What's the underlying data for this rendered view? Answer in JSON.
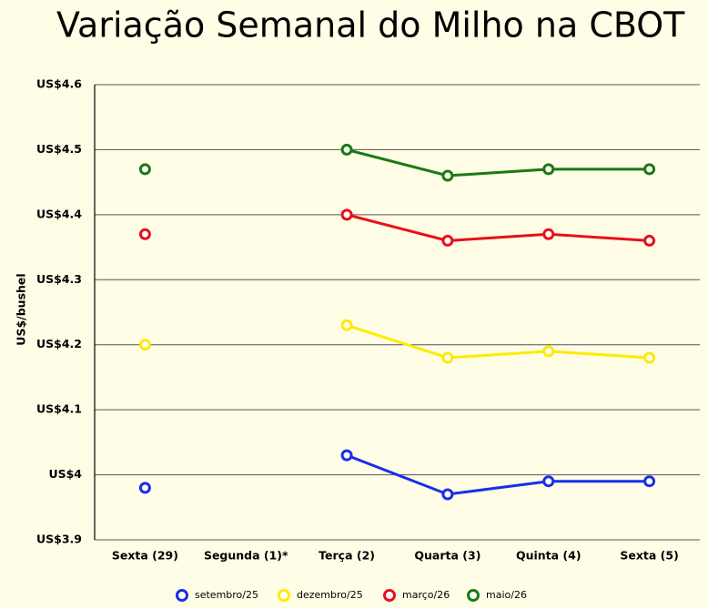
{
  "chart_data": {
    "type": "line",
    "title": "Variação Semanal do Milho na CBOT",
    "y_label": "US$/bushel",
    "categories": [
      "Sexta (29)",
      "Segunda (1)*",
      "Terça (2)",
      "Quarta (3)",
      "Quinta (4)",
      "Sexta (5)"
    ],
    "series": [
      {
        "name": "setembro/25",
        "color": "#1a2ee8",
        "values": [
          3.98,
          null,
          4.03,
          3.97,
          3.99,
          3.99
        ]
      },
      {
        "name": "dezembro/25",
        "color": "#ffea00",
        "values": [
          4.2,
          null,
          4.23,
          4.18,
          4.19,
          4.18
        ]
      },
      {
        "name": "março/26",
        "color": "#e8101a",
        "values": [
          4.37,
          null,
          4.4,
          4.36,
          4.37,
          4.36
        ]
      },
      {
        "name": "maio/26",
        "color": "#1a7a12",
        "values": [
          4.47,
          null,
          4.5,
          4.46,
          4.47,
          4.47
        ]
      }
    ],
    "ylim": [
      3.9,
      4.6
    ],
    "yticks": [
      {
        "value": 3.9,
        "label": "US$3.9"
      },
      {
        "value": 4,
        "label": "US$4"
      },
      {
        "value": 4.1,
        "label": "US$4.1"
      },
      {
        "value": 4.2,
        "label": "US$4.2"
      },
      {
        "value": 4.3,
        "label": "US$4.3"
      },
      {
        "value": 4.4,
        "label": "US$4.4"
      },
      {
        "value": 4.5,
        "label": "US$4.5"
      },
      {
        "value": 4.6,
        "label": "US$4.6"
      }
    ],
    "grid": true,
    "legend": "bottom"
  }
}
